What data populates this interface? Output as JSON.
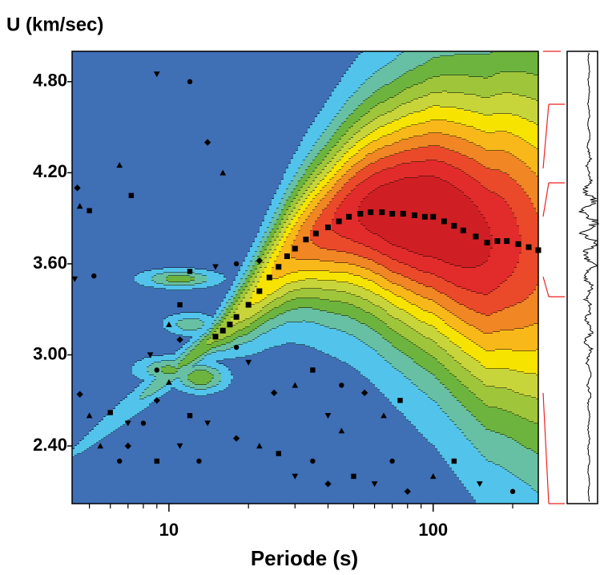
{
  "chart_data": {
    "type": "contour",
    "y_label": "U (km/sec)",
    "x_label": "Periode (s)",
    "x_log": true,
    "xlim": [
      4.3,
      250
    ],
    "ylim": [
      2.02,
      5.0
    ],
    "xticks": [
      10,
      100
    ],
    "xminorticks": [
      5,
      6,
      7,
      8,
      9,
      20,
      30,
      40,
      50,
      60,
      70,
      80,
      90,
      200
    ],
    "yticks": [
      {
        "value": 2.4,
        "label": "2.40"
      },
      {
        "value": 3.0,
        "label": "3.00"
      },
      {
        "value": 3.6,
        "label": "3.60"
      },
      {
        "value": 4.2,
        "label": "4.20"
      },
      {
        "value": 4.8,
        "label": "4.80"
      }
    ],
    "contour_colors": [
      "#3f6fb5",
      "#52c3ea",
      "#67c0a3",
      "#6cb43e",
      "#9fc53a",
      "#c8d53a",
      "#f6e400",
      "#f8b81a",
      "#f08624",
      "#ea4a2a",
      "#e22b2b",
      "#d01f24"
    ],
    "contour_line_color": "#000000",
    "marker_cycle": [
      "diamond",
      "triangle",
      "square",
      "triangle-down",
      "circle"
    ],
    "series": [
      {
        "color": "#000000",
        "marker": "square",
        "x": [
          15,
          16,
          17,
          18,
          20,
          22,
          24,
          26,
          28,
          30,
          33,
          36,
          40,
          44,
          48,
          53,
          58,
          64,
          70,
          77,
          85,
          93,
          100,
          110,
          120,
          130,
          145,
          160,
          175,
          190,
          210,
          230,
          250
        ],
        "values": [
          3.12,
          3.16,
          3.2,
          3.25,
          3.33,
          3.42,
          3.51,
          3.58,
          3.65,
          3.7,
          3.76,
          3.8,
          3.84,
          3.88,
          3.91,
          3.93,
          3.94,
          3.94,
          3.93,
          3.93,
          3.92,
          3.91,
          3.91,
          3.88,
          3.85,
          3.82,
          3.78,
          3.74,
          3.75,
          3.75,
          3.73,
          3.71,
          3.69
        ]
      },
      {
        "color": "#000000",
        "marker": "mixed",
        "x": [
          4.5,
          4.6,
          5,
          4.4,
          5.2,
          4.6,
          5,
          6,
          7,
          8,
          9,
          10,
          12,
          14,
          6.5,
          7,
          5.5,
          9,
          11,
          13,
          18,
          22,
          26,
          30,
          35,
          40,
          45,
          50,
          60,
          70,
          80,
          100,
          120,
          150,
          200,
          25,
          30,
          35,
          40,
          45,
          55,
          65,
          75,
          20,
          18,
          11,
          10,
          12,
          15,
          18,
          22,
          6.5,
          7.2,
          9,
          12,
          14,
          16,
          11,
          8.5,
          9
        ],
        "values": [
          4.1,
          3.98,
          3.95,
          3.5,
          3.52,
          2.74,
          2.6,
          2.62,
          2.55,
          2.55,
          2.7,
          2.82,
          2.6,
          2.55,
          2.3,
          2.4,
          2.4,
          2.3,
          2.4,
          2.3,
          2.45,
          2.4,
          2.35,
          2.2,
          2.3,
          2.15,
          2.5,
          2.2,
          2.15,
          2.3,
          2.1,
          2.2,
          2.3,
          2.15,
          2.1,
          2.75,
          2.8,
          2.9,
          2.6,
          2.8,
          2.75,
          2.6,
          2.7,
          2.95,
          3.05,
          3.1,
          3.2,
          3.55,
          3.58,
          3.6,
          3.62,
          4.25,
          4.05,
          4.85,
          4.8,
          4.4,
          4.2,
          3.33,
          3.0,
          2.9
        ]
      }
    ]
  }
}
